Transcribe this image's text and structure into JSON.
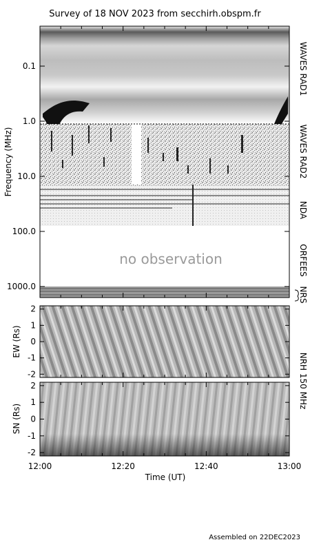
{
  "title": "Survey of 18 NOV 2023 from secchirh.obspm.fr",
  "footer": "Assembled on 22DEC2023",
  "colors": {
    "background": "#ffffff",
    "axis": "#000000",
    "no_observation_text": "#9a9a9a"
  },
  "chart_data": [
    {
      "type": "heatmap",
      "name": "dynamic-spectrum",
      "ylabel": "Frequency (MHz)",
      "y_scale": "log",
      "y_inverted": true,
      "ylim": [
        0.02,
        1300
      ],
      "y_ticks": [
        {
          "value": 0.1,
          "label": "0.1"
        },
        {
          "value": 1.0,
          "label": "1.0"
        },
        {
          "value": 10,
          "label": "10.0"
        },
        {
          "value": 100,
          "label": "100.0"
        },
        {
          "value": 1000,
          "label": "1000.0"
        }
      ],
      "instruments": [
        {
          "label": "WAVES RAD1",
          "range_mhz": [
            0.02,
            1.0
          ]
        },
        {
          "label": "WAVES RAD2",
          "range_mhz": [
            1.0,
            13.8
          ]
        },
        {
          "label": "NDA",
          "range_mhz": [
            13.8,
            80
          ]
        },
        {
          "label": "ORFEES",
          "range_mhz": [
            140,
            1000
          ]
        },
        {
          "label": "NRS",
          "range_mhz": [
            1000,
            1300
          ]
        }
      ],
      "no_observation_text": "no observation",
      "data_gap": {
        "instrument": "WAVES RAD2",
        "time_range": [
          "12:23",
          "12:25"
        ]
      }
    },
    {
      "type": "heatmap",
      "name": "nrh-ew",
      "ylabel": "EW (Rs)",
      "ylim": [
        -2.2,
        2.2
      ],
      "y_ticks": [
        -2,
        -1,
        0,
        1,
        2
      ]
    },
    {
      "type": "heatmap",
      "name": "nrh-sn",
      "ylabel": "SN (Rs)",
      "ylim": [
        -2.2,
        2.2
      ],
      "y_ticks": [
        -2,
        -1,
        0,
        1,
        2
      ]
    }
  ],
  "nrh_label": "NRH 150 MHz",
  "time_axis": {
    "xlabel": "Time (UT)",
    "xlim": [
      "12:00",
      "13:00"
    ],
    "ticks": [
      "12:00",
      "12:20",
      "12:40",
      "13:00"
    ]
  }
}
